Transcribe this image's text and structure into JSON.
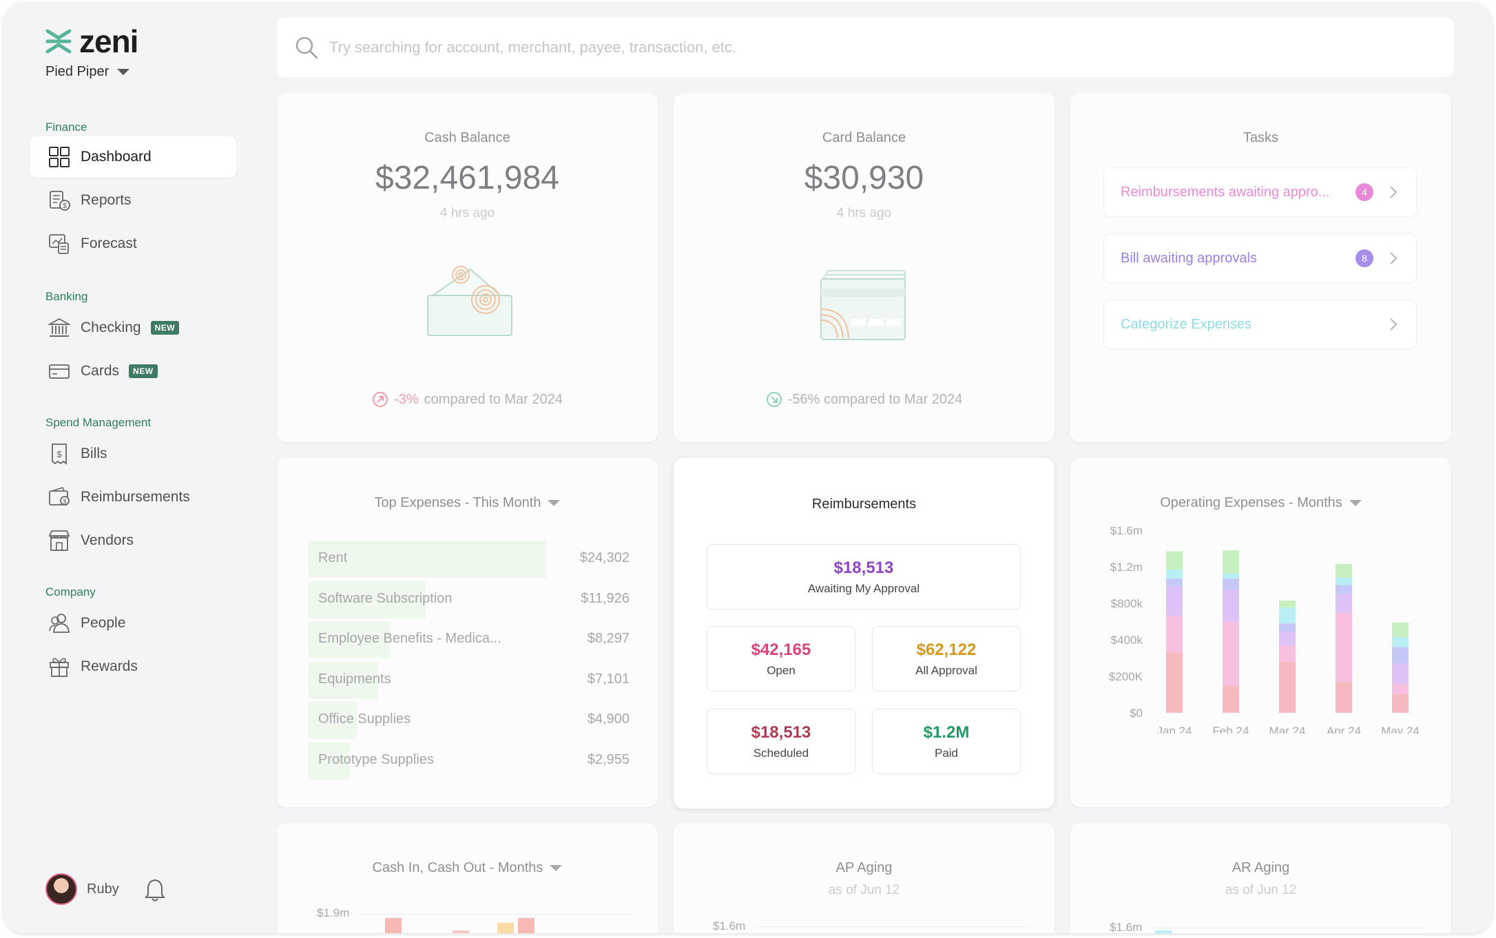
{
  "brand": {
    "name": "zeni",
    "org": "Pied Piper"
  },
  "search": {
    "placeholder": "Try searching for account, merchant, payee, transaction, etc."
  },
  "sidebar": {
    "sections": {
      "finance": "Finance",
      "banking": "Banking",
      "spend": "Spend Management",
      "company": "Company"
    },
    "items": {
      "dashboard": "Dashboard",
      "reports": "Reports",
      "forecast": "Forecast",
      "checking": "Checking",
      "cards": "Cards",
      "bills": "Bills",
      "reimbursements": "Reimbursements",
      "vendors": "Vendors",
      "people": "People",
      "rewards": "Rewards"
    },
    "new_badge": "NEW",
    "user": "Ruby"
  },
  "cash_balance": {
    "title": "Cash Balance",
    "value": "$32,461,984",
    "updated": "4 hrs ago",
    "change": "-3%",
    "compare_text": "compared to Mar 2024"
  },
  "card_balance": {
    "title": "Card Balance",
    "value": "$30,930",
    "updated": "4 hrs ago",
    "compare_text": "-56% compared to Mar 2024"
  },
  "tasks": {
    "title": "Tasks",
    "items": [
      {
        "label": "Reimbursements awaiting appro...",
        "count": "4",
        "color": "#e06fd0"
      },
      {
        "label": "Bill awaiting approvals",
        "count": "8",
        "color": "#8a6fe0"
      },
      {
        "label": "Categorize Expenses",
        "count": "",
        "color": "#7fd8e8"
      }
    ]
  },
  "top_expenses": {
    "title": "Top Expenses - This Month",
    "rows": [
      {
        "label": "Rent",
        "value": "$24,302",
        "amount": 24302
      },
      {
        "label": "Software Subscription",
        "value": "$11,926",
        "amount": 11926
      },
      {
        "label": "Employee Benefits - Medica...",
        "value": "$8,297",
        "amount": 8297
      },
      {
        "label": "Equipments",
        "value": "$7,101",
        "amount": 7101
      },
      {
        "label": "Office Supplies",
        "value": "$4,900",
        "amount": 4900
      },
      {
        "label": "Prototype Supplies",
        "value": "$2,955",
        "amount": 2955
      }
    ]
  },
  "reimbursements": {
    "title": "Reimbursements",
    "awaiting": {
      "value": "$18,513",
      "label": "Awaiting My Approval",
      "color": "#8e44c9"
    },
    "open": {
      "value": "$42,165",
      "label": "Open",
      "color": "#d9457a"
    },
    "all": {
      "value": "$62,122",
      "label": "All Approval",
      "color": "#d69a1a"
    },
    "scheduled": {
      "value": "$18,513",
      "label": "Scheduled",
      "color": "#b03a52"
    },
    "paid": {
      "value": "$1.2M",
      "label": "Paid",
      "color": "#1e9a63"
    }
  },
  "operating_expenses": {
    "title": "Operating Expenses - Months"
  },
  "chart_data": {
    "type": "bar",
    "stacked": true,
    "categories": [
      "Jan 24",
      "Feb 24",
      "Mar 24",
      "Apr 24",
      "May 24"
    ],
    "ylim": [
      0,
      1600000
    ],
    "yticks": [
      "$0",
      "$200K",
      "$400k",
      "$800k",
      "$1.2m",
      "$1.6m"
    ],
    "series": [
      {
        "color": "#f6b9bd",
        "values": [
          330000,
          150000,
          280000,
          170000,
          100000
        ]
      },
      {
        "color": "#f7c0e0",
        "values": [
          330000,
          450000,
          90000,
          530000,
          60000
        ]
      },
      {
        "color": "#dcc2f7",
        "values": [
          330000,
          350000,
          120000,
          200000,
          110000
        ]
      },
      {
        "color": "#c5c8f7",
        "values": [
          80000,
          120000,
          90000,
          100000,
          90000
        ]
      },
      {
        "color": "#b8eef4",
        "values": [
          100000,
          60000,
          170000,
          80000,
          70000
        ]
      },
      {
        "color": "#c6f0c0",
        "values": [
          200000,
          250000,
          80000,
          150000,
          160000
        ]
      }
    ]
  },
  "cash_in_out": {
    "title": "Cash In, Cash Out - Months",
    "tick": "$1.9m"
  },
  "ap_aging": {
    "title": "AP Aging",
    "subtitle": "as of Jun 12",
    "tick": "$1.6m"
  },
  "ar_aging": {
    "title": "AR Aging",
    "subtitle": "as of Jun 12",
    "tick": "$1.6m"
  }
}
